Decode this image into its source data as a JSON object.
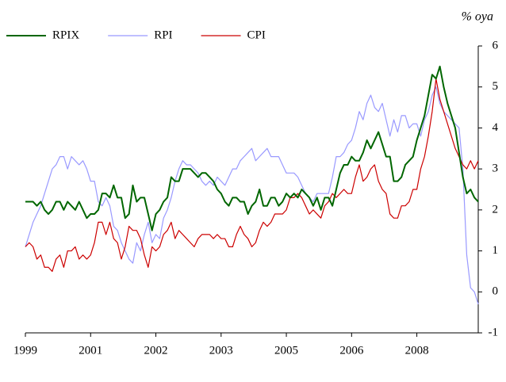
{
  "chart_data": {
    "type": "line",
    "unit_label": "% oya",
    "legend": "top-left",
    "categories": [
      "1999",
      null,
      null,
      null,
      null,
      null,
      null,
      null,
      null,
      null,
      null,
      null,
      null,
      null,
      null,
      null,
      null,
      "2001",
      null,
      null,
      null,
      null,
      null,
      null,
      null,
      null,
      null,
      null,
      null,
      null,
      null,
      null,
      null,
      null,
      "2002",
      null,
      null,
      null,
      null,
      null,
      null,
      null,
      null,
      null,
      null,
      null,
      null,
      null,
      null,
      null,
      null,
      "2003",
      null,
      null,
      null,
      null,
      null,
      null,
      null,
      null,
      null,
      null,
      null,
      null,
      null,
      null,
      null,
      null,
      "2005",
      null,
      null,
      null,
      null,
      null,
      null,
      null,
      null,
      null,
      null,
      null,
      null,
      null,
      null,
      null,
      null,
      "2006",
      null,
      null,
      null,
      null,
      null,
      null,
      null,
      null,
      null,
      null,
      null,
      null,
      null,
      null,
      null,
      null,
      "2008",
      null,
      null,
      null,
      null,
      null,
      null,
      null,
      null,
      null,
      null,
      null,
      null,
      null,
      null,
      null,
      null
    ],
    "series": [
      {
        "name": "RPIX",
        "color": "#006600",
        "values": [
          2.2,
          2.2,
          2.2,
          2.1,
          2.2,
          2.0,
          1.9,
          2.0,
          2.2,
          2.2,
          2.0,
          2.2,
          2.1,
          2.0,
          2.2,
          2.0,
          1.8,
          1.9,
          1.9,
          2.0,
          2.4,
          2.4,
          2.3,
          2.6,
          2.3,
          2.3,
          1.8,
          1.9,
          2.6,
          2.2,
          2.3,
          2.3,
          1.9,
          1.5,
          1.9,
          2.0,
          2.2,
          2.3,
          2.8,
          2.7,
          2.7,
          3.0,
          3.0,
          3.0,
          2.9,
          2.8,
          2.9,
          2.9,
          2.8,
          2.7,
          2.5,
          2.4,
          2.2,
          2.1,
          2.3,
          2.3,
          2.2,
          2.2,
          1.9,
          2.1,
          2.2,
          2.5,
          2.1,
          2.1,
          2.3,
          2.3,
          2.1,
          2.2,
          2.4,
          2.3,
          2.4,
          2.3,
          2.5,
          2.4,
          2.3,
          2.1,
          2.3,
          2.0,
          2.3,
          2.3,
          2.1,
          2.5,
          2.9,
          3.1,
          3.1,
          3.3,
          3.2,
          3.2,
          3.4,
          3.7,
          3.5,
          3.7,
          3.9,
          3.6,
          3.3,
          3.3,
          2.7,
          2.7,
          2.8,
          3.1,
          3.2,
          3.3,
          3.7,
          4.0,
          4.3,
          4.8,
          5.3,
          5.2,
          5.5,
          5.0,
          4.6,
          4.3,
          4.0,
          3.4,
          2.8,
          2.4,
          2.5,
          2.3,
          2.2
        ]
      },
      {
        "name": "RPI",
        "color": "#9999ff",
        "values": [
          1.1,
          1.4,
          1.7,
          1.9,
          2.1,
          2.4,
          2.7,
          3.0,
          3.1,
          3.3,
          3.3,
          3.0,
          3.3,
          3.2,
          3.1,
          3.2,
          3.0,
          2.7,
          2.7,
          2.2,
          2.1,
          2.3,
          2.1,
          1.6,
          1.5,
          1.2,
          1.0,
          0.8,
          0.7,
          1.2,
          1.0,
          1.4,
          1.7,
          1.2,
          1.4,
          1.3,
          1.8,
          2.0,
          2.3,
          2.7,
          3.0,
          3.2,
          3.1,
          3.1,
          3.0,
          2.9,
          2.7,
          2.6,
          2.7,
          2.6,
          2.8,
          2.7,
          2.6,
          2.8,
          3.0,
          3.0,
          3.2,
          3.3,
          3.4,
          3.5,
          3.2,
          3.3,
          3.4,
          3.5,
          3.3,
          3.3,
          3.3,
          3.1,
          2.9,
          2.9,
          2.9,
          2.8,
          2.6,
          2.4,
          2.3,
          2.2,
          2.4,
          2.4,
          2.4,
          2.4,
          2.8,
          3.3,
          3.3,
          3.4,
          3.6,
          3.7,
          4.0,
          4.4,
          4.2,
          4.6,
          4.8,
          4.5,
          4.4,
          4.6,
          4.2,
          3.8,
          4.2,
          3.9,
          4.3,
          4.3,
          4.0,
          4.1,
          4.1,
          3.8,
          4.2,
          4.4,
          4.8,
          5.0,
          4.6,
          4.4,
          4.3,
          4.2,
          4.1,
          4.0,
          3.0,
          0.9,
          0.1,
          0.0,
          -0.3
        ]
      },
      {
        "name": "CPI",
        "color": "#cc0000",
        "values": [
          1.1,
          1.2,
          1.1,
          0.8,
          0.9,
          0.6,
          0.6,
          0.5,
          0.8,
          0.9,
          0.6,
          1.0,
          1.0,
          1.1,
          0.8,
          0.9,
          0.8,
          0.9,
          1.2,
          1.7,
          1.7,
          1.4,
          1.7,
          1.3,
          1.2,
          0.8,
          1.1,
          1.6,
          1.5,
          1.5,
          1.3,
          0.9,
          0.6,
          1.1,
          1.0,
          1.1,
          1.4,
          1.5,
          1.7,
          1.3,
          1.5,
          1.4,
          1.3,
          1.2,
          1.1,
          1.3,
          1.4,
          1.4,
          1.4,
          1.3,
          1.4,
          1.3,
          1.3,
          1.1,
          1.1,
          1.4,
          1.6,
          1.4,
          1.3,
          1.1,
          1.2,
          1.5,
          1.7,
          1.6,
          1.7,
          1.9,
          1.9,
          1.9,
          2.0,
          2.3,
          2.3,
          2.4,
          2.3,
          2.1,
          1.9,
          2.0,
          1.9,
          1.8,
          2.1,
          2.2,
          2.4,
          2.3,
          2.4,
          2.5,
          2.4,
          2.4,
          2.8,
          3.1,
          2.7,
          2.8,
          3.0,
          3.1,
          2.7,
          2.5,
          2.4,
          1.9,
          1.8,
          1.8,
          2.1,
          2.1,
          2.2,
          2.5,
          2.5,
          3.0,
          3.3,
          3.8,
          4.4,
          5.2,
          4.7,
          4.4,
          4.1,
          3.8,
          3.5,
          3.3,
          3.1,
          3.0,
          3.2,
          3.0,
          3.2
        ]
      }
    ],
    "ylim": [
      -1,
      6
    ],
    "yticks": [
      -1,
      0,
      1,
      2,
      3,
      4,
      5,
      6
    ]
  }
}
